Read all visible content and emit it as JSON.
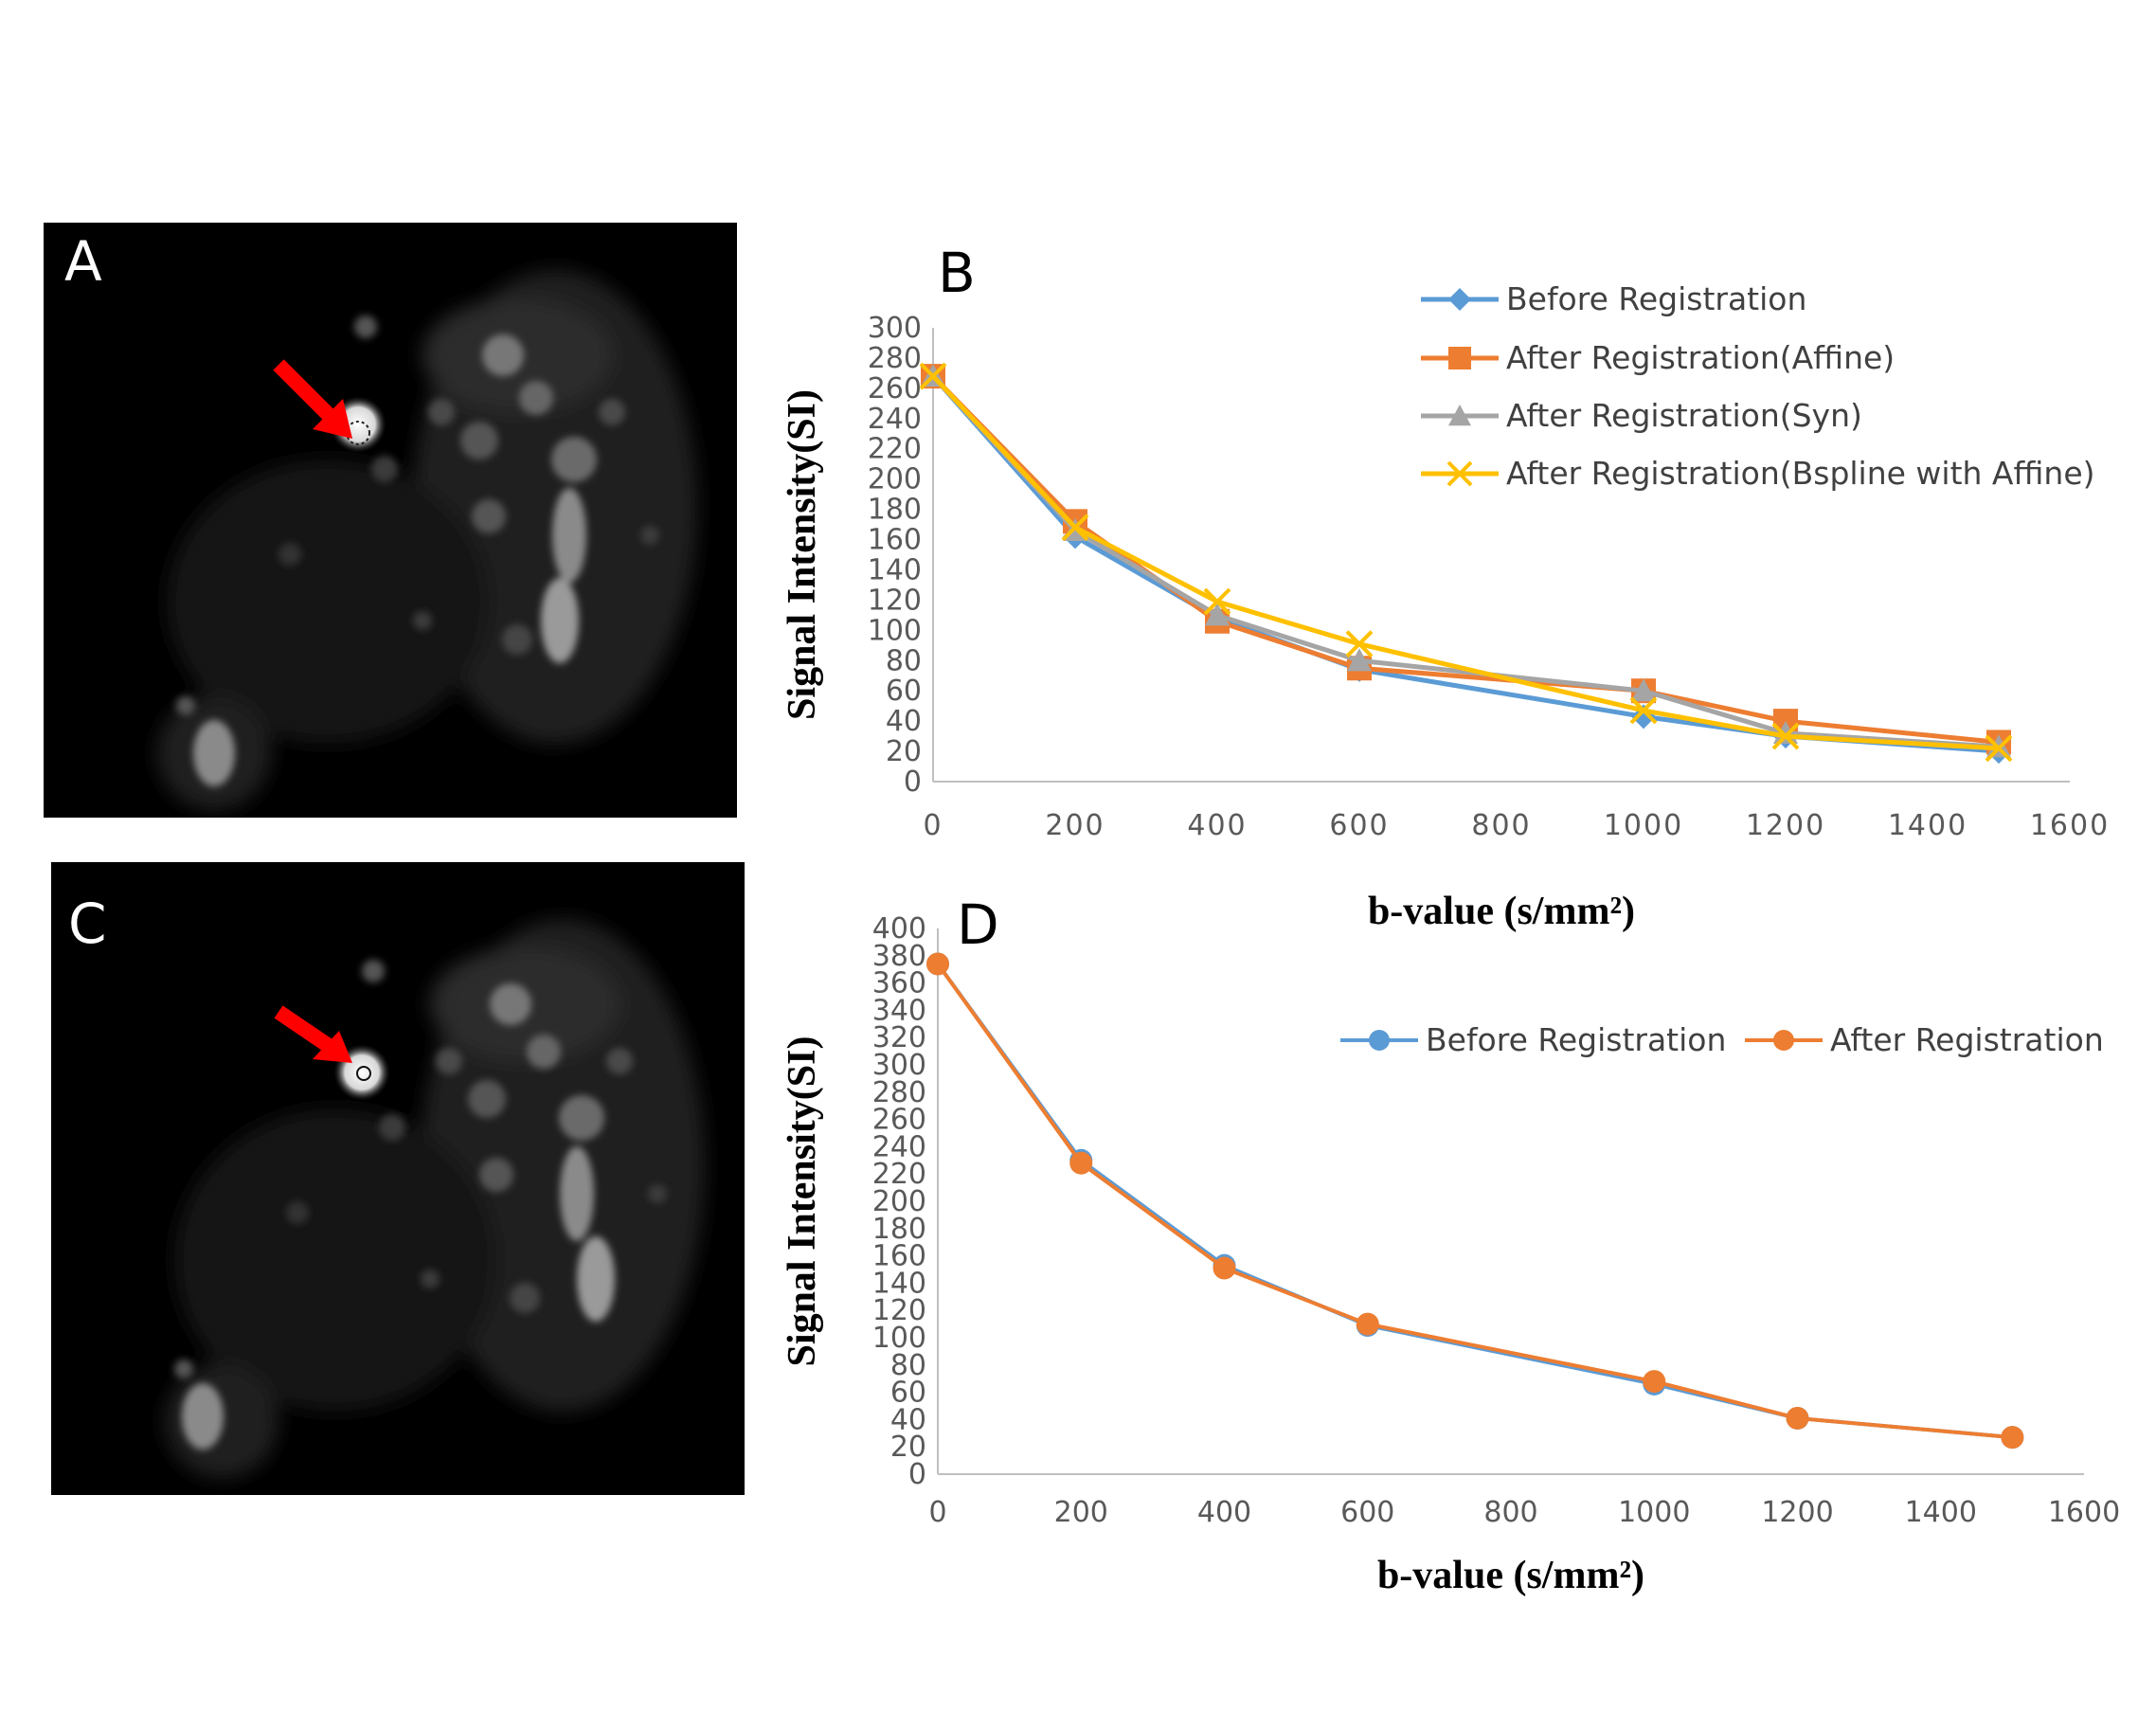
{
  "panels": {
    "a": {
      "letter": "A"
    },
    "b": {
      "letter": "B"
    },
    "c": {
      "letter": "C"
    },
    "d": {
      "letter": "D"
    }
  },
  "colors": {
    "blue": "#5b9bd5",
    "orange": "#ed7d31",
    "gray": "#a5a5a5",
    "yellow": "#ffc000",
    "arrow": "#ff0000"
  },
  "chart_data": [
    {
      "panel": "B",
      "type": "line",
      "xlabel": "b-value (s/mm²)",
      "ylabel": "Signal Intensity(SI)",
      "xlim": [
        0,
        1600
      ],
      "ylim": [
        0,
        300
      ],
      "xticks": [
        0,
        200,
        400,
        600,
        800,
        1000,
        1200,
        1400,
        1600
      ],
      "yticks": [
        0,
        20,
        40,
        60,
        80,
        100,
        120,
        140,
        160,
        180,
        200,
        220,
        240,
        260,
        280,
        300
      ],
      "legend_position": "top-right",
      "x": [
        0,
        200,
        400,
        600,
        1000,
        1200,
        1500
      ],
      "series": [
        {
          "name": "Before Registration",
          "marker": "diamond",
          "color": "#5b9bd5",
          "values": [
            268,
            162,
            108,
            74,
            43,
            30,
            20
          ]
        },
        {
          "name": "After Registration(Affine)",
          "marker": "square",
          "color": "#ed7d31",
          "values": [
            268,
            172,
            106,
            75,
            60,
            40,
            26
          ]
        },
        {
          "name": "After Registration(Syn)",
          "marker": "triangle",
          "color": "#a5a5a5",
          "values": [
            268,
            166,
            110,
            80,
            60,
            32,
            23
          ]
        },
        {
          "name": "After Registration(Bspline with Affine)",
          "marker": "x",
          "color": "#ffc000",
          "values": [
            268,
            168,
            119,
            91,
            47,
            30,
            22
          ]
        }
      ]
    },
    {
      "panel": "D",
      "type": "line",
      "xlabel": "b-value (s/mm²)",
      "ylabel": "Signal Intensity(SI)",
      "xlim": [
        0,
        1600
      ],
      "ylim": [
        0,
        400
      ],
      "xticks": [
        0,
        200,
        400,
        600,
        800,
        1000,
        1200,
        1400,
        1600
      ],
      "yticks": [
        0,
        20,
        40,
        60,
        80,
        100,
        120,
        140,
        160,
        180,
        200,
        220,
        240,
        260,
        280,
        300,
        320,
        340,
        360,
        380,
        400
      ],
      "legend_position": "top-right",
      "x": [
        0,
        200,
        400,
        600,
        1000,
        1200,
        1500
      ],
      "series": [
        {
          "name": "Before Registration",
          "marker": "circle",
          "color": "#5b9bd5",
          "values": [
            374,
            230,
            153,
            109,
            66,
            41,
            27
          ]
        },
        {
          "name": "After Registration",
          "marker": "circle",
          "color": "#ed7d31",
          "values": [
            374,
            228,
            151,
            110,
            68,
            41,
            27
          ]
        }
      ]
    }
  ]
}
